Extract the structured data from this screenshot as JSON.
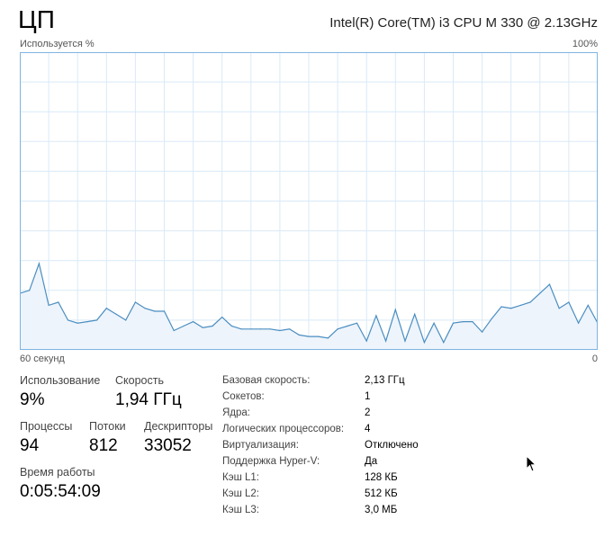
{
  "header": {
    "title": "ЦП",
    "cpu_name": "Intel(R) Core(TM) i3 CPU M 330 @ 2.13GHz"
  },
  "graph": {
    "y_label": "Используется %",
    "y_max_label": "100%",
    "x_left_label": "60 секунд",
    "x_right_label": "0"
  },
  "chart_data": {
    "type": "area",
    "ylim": [
      0,
      100
    ],
    "xlim": [
      60,
      0
    ],
    "grid": true,
    "line_color": "#4a8ec2",
    "fill_color": "#eef4fb",
    "grid_color": "#d9eaf7",
    "border_color": "#7fb4e0",
    "values": [
      19,
      20,
      29,
      15,
      16,
      10,
      9,
      9.5,
      10,
      14,
      12,
      10,
      16,
      14,
      13,
      13,
      6.5,
      8,
      9.5,
      7.5,
      8,
      11,
      8,
      7,
      7,
      7,
      7,
      6.5,
      7,
      5,
      4.5,
      4.5,
      4,
      7,
      8,
      9,
      3,
      11.5,
      3,
      13.5,
      3,
      12,
      2.5,
      9,
      2.5,
      9,
      9.5,
      9.5,
      6,
      10.5,
      14.5,
      14,
      15,
      16,
      19,
      22,
      14,
      16,
      9,
      15,
      9
    ]
  },
  "stats": {
    "utilization": {
      "label": "Использование",
      "value": "9%"
    },
    "speed": {
      "label": "Скорость",
      "value": "1,94 ГГц"
    },
    "processes": {
      "label": "Процессы",
      "value": "94"
    },
    "threads": {
      "label": "Потоки",
      "value": "812"
    },
    "handles": {
      "label": "Дескрипторы",
      "value": "33052"
    },
    "uptime": {
      "label": "Время работы",
      "value": "0:05:54:09"
    }
  },
  "details": [
    {
      "key": "Базовая скорость:",
      "value": "2,13 ГГц"
    },
    {
      "key": "Сокетов:",
      "value": "1"
    },
    {
      "key": "Ядра:",
      "value": "2"
    },
    {
      "key": "Логических процессоров:",
      "value": "4"
    },
    {
      "key": "Виртуализация:",
      "value": "Отключено"
    },
    {
      "key": "Поддержка Hyper-V:",
      "value": "Да"
    },
    {
      "key": "Кэш L1:",
      "value": "128 КБ"
    },
    {
      "key": "Кэш L2:",
      "value": "512 КБ"
    },
    {
      "key": "Кэш L3:",
      "value": "3,0 МБ"
    }
  ]
}
